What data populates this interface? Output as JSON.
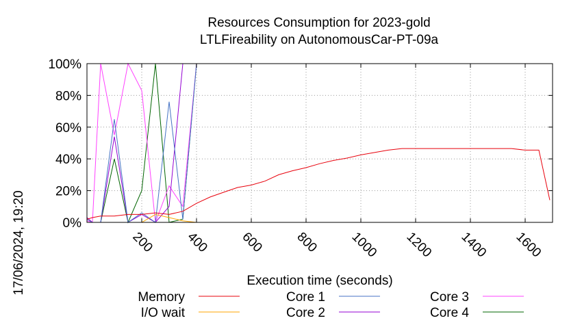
{
  "chart_data": {
    "type": "line",
    "title": "Resources Consumption for 2023-gold",
    "subtitle": "LTLFireability on AutonomousCar-PT-09a",
    "xlabel": "Execution time (seconds)",
    "ylabel": "",
    "side_label": "17/06/2024, 19:20",
    "xlim": [
      0,
      1700
    ],
    "ylim": [
      0,
      100
    ],
    "grid": true,
    "legend_position": "bottom",
    "x_ticks": [
      200,
      400,
      600,
      800,
      1000,
      1200,
      1400,
      1600
    ],
    "x_tick_labels": [
      "200",
      "400",
      "600",
      "800",
      "1000",
      "1200",
      "1400",
      "1600"
    ],
    "y_ticks": [
      0,
      20,
      40,
      60,
      80,
      100
    ],
    "y_tick_labels": [
      "0%",
      "20%",
      "40%",
      "60%",
      "80%",
      "100%"
    ],
    "series": [
      {
        "name": "Memory",
        "color": "#e8000b",
        "x": [
          0,
          20,
          50,
          100,
          150,
          200,
          250,
          300,
          350,
          400,
          450,
          500,
          550,
          600,
          650,
          700,
          750,
          800,
          850,
          900,
          950,
          1000,
          1050,
          1100,
          1150,
          1200,
          1250,
          1300,
          1350,
          1400,
          1450,
          1500,
          1550,
          1600,
          1650,
          1690
        ],
        "y": [
          2,
          3,
          4,
          4,
          5,
          5,
          6,
          5,
          7,
          12,
          16,
          19,
          22,
          23.5,
          26,
          30,
          32.5,
          34.5,
          37,
          39,
          40.5,
          42.5,
          44,
          45.5,
          46.5,
          46.5,
          46.5,
          46.5,
          46.5,
          46.5,
          46.5,
          46.5,
          46.5,
          45.5,
          45.5,
          14
        ]
      },
      {
        "name": "I/O wait",
        "color": "#ffa500",
        "x": [
          0,
          20,
          50,
          100,
          150,
          200,
          250,
          300,
          350,
          400
        ],
        "y": [
          0,
          0,
          0,
          0,
          0,
          0,
          5,
          3,
          1,
          0
        ]
      },
      {
        "name": "Core 1",
        "color": "#4472c4",
        "x": [
          0,
          20,
          50,
          100,
          150,
          200,
          250,
          300,
          350,
          400,
          1700
        ],
        "y": [
          2,
          0,
          0,
          65,
          0,
          6,
          0,
          76,
          2,
          100,
          100
        ]
      },
      {
        "name": "Core 2",
        "color": "#9400d3",
        "x": [
          0,
          20,
          50,
          100,
          150,
          200,
          250,
          300,
          350,
          400,
          1700
        ],
        "y": [
          3,
          0,
          0,
          54,
          0,
          5,
          0,
          10,
          100,
          100,
          100
        ]
      },
      {
        "name": "Core 3",
        "color": "#ff40ff",
        "x": [
          0,
          20,
          50,
          100,
          150,
          200,
          250,
          300,
          350,
          400,
          1700
        ],
        "y": [
          1,
          0,
          100,
          55,
          100,
          83,
          0,
          23,
          10,
          100,
          100
        ]
      },
      {
        "name": "Core 4",
        "color": "#006400",
        "x": [
          0,
          20,
          50,
          100,
          150,
          200,
          250,
          300,
          350,
          400,
          1700
        ],
        "y": [
          0,
          0,
          0,
          40,
          0,
          20,
          100,
          0,
          2,
          100,
          100
        ]
      }
    ]
  }
}
